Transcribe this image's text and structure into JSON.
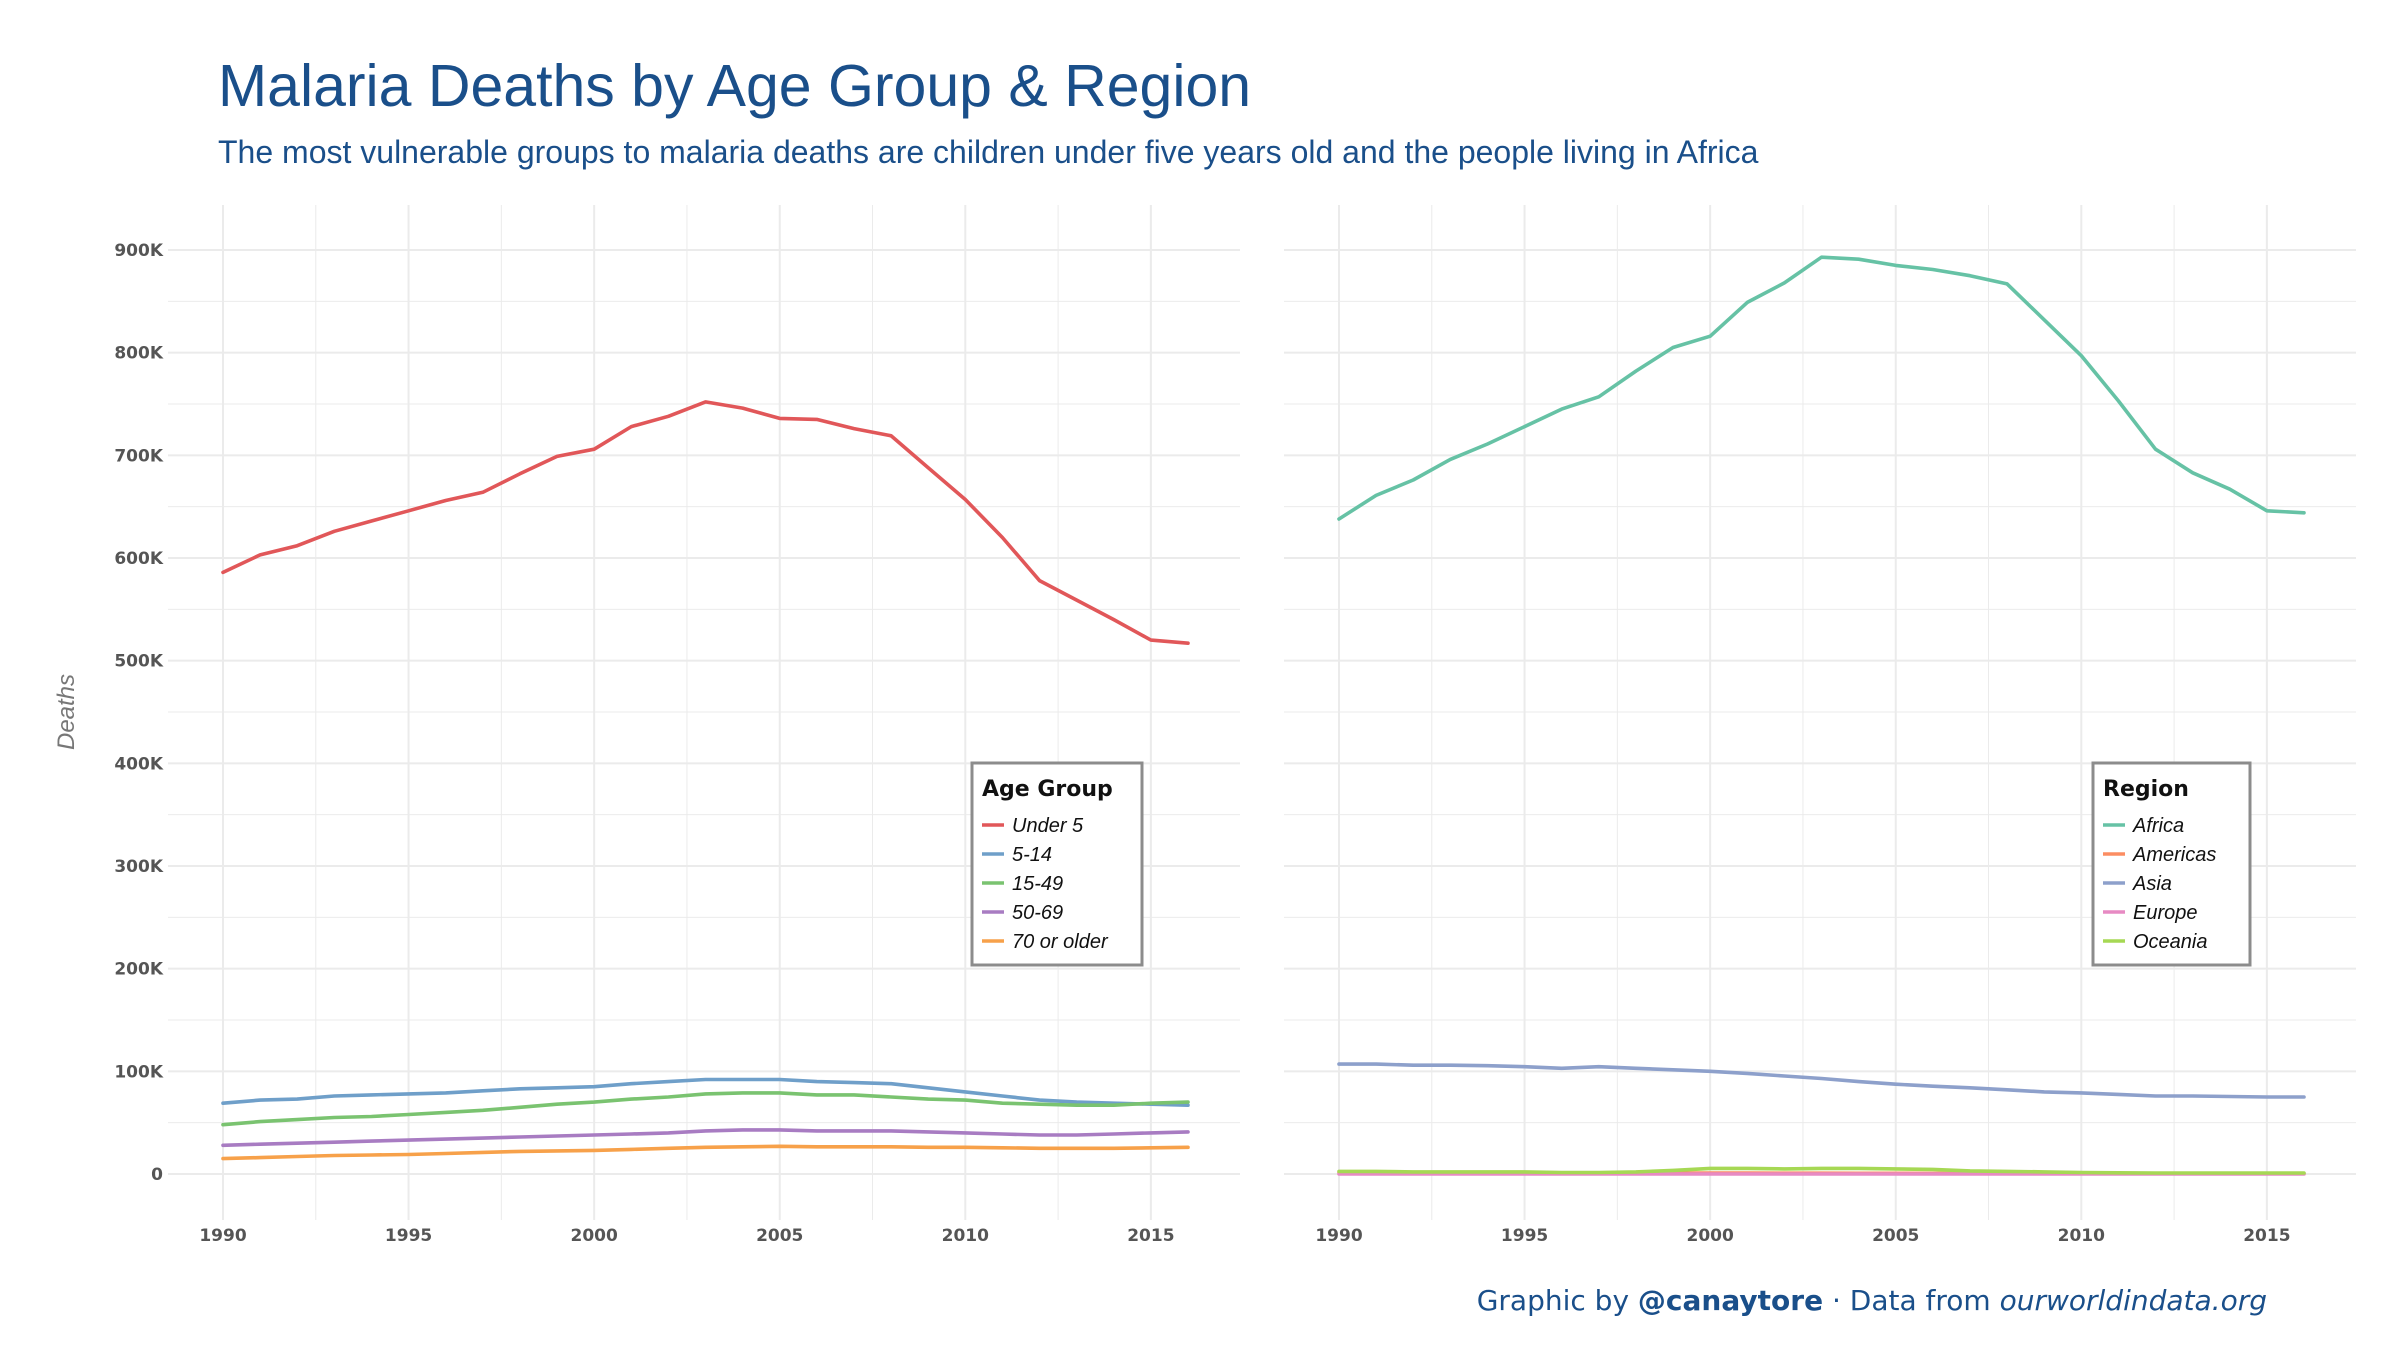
{
  "header": {
    "title": "Malaria Deaths by Age Group & Region",
    "subtitle": "The most vulnerable groups to malaria deaths are children under five years old and the people living in Africa"
  },
  "caption": {
    "prefix": "Graphic by ",
    "handle": "@canaytore",
    "middle": " · Data from ",
    "source": "ourworldindata.org"
  },
  "colors": {
    "title": "#1a4f8a",
    "grid": "#ebebeb"
  },
  "chart_data": [
    {
      "type": "line",
      "ylabel": "Deaths",
      "xlabel": "",
      "xlim": [
        1990,
        2016
      ],
      "ylim": [
        0,
        900000
      ],
      "x_ticks": [
        1990,
        1995,
        2000,
        2005,
        2010,
        2015
      ],
      "y_ticks": [
        0,
        100000,
        200000,
        300000,
        400000,
        500000,
        600000,
        700000,
        800000,
        900000
      ],
      "y_tick_labels": [
        "0",
        "100K",
        "200K",
        "300K",
        "400K",
        "500K",
        "600K",
        "700K",
        "800K",
        "900K"
      ],
      "grid": true,
      "legend": {
        "title": "Age Group",
        "position": "bottom-right"
      },
      "x": [
        1990,
        1991,
        1992,
        1993,
        1994,
        1995,
        1996,
        1997,
        1998,
        1999,
        2000,
        2001,
        2002,
        2003,
        2004,
        2005,
        2006,
        2007,
        2008,
        2009,
        2010,
        2011,
        2012,
        2013,
        2014,
        2015,
        2016
      ],
      "series": [
        {
          "name": "Under 5",
          "color": "#e15759",
          "values": [
            586000,
            603000,
            612000,
            626000,
            636000,
            646000,
            656000,
            664000,
            682000,
            699000,
            706000,
            728000,
            738000,
            752000,
            746000,
            736000,
            735000,
            726000,
            719000,
            688000,
            657000,
            620000,
            578000,
            559000,
            540000,
            520000,
            517000
          ]
        },
        {
          "name": "5-14",
          "color": "#6f9fc9",
          "values": [
            69000,
            72000,
            73000,
            76000,
            77000,
            78000,
            79000,
            81000,
            83000,
            84000,
            85000,
            88000,
            90000,
            92000,
            92000,
            92000,
            90000,
            89000,
            88000,
            84000,
            80000,
            76000,
            72000,
            70000,
            69000,
            68000,
            67000
          ]
        },
        {
          "name": "15-49",
          "color": "#7ac370",
          "values": [
            48000,
            51000,
            53000,
            55000,
            56000,
            58000,
            60000,
            62000,
            65000,
            68000,
            70000,
            73000,
            75000,
            78000,
            79000,
            79000,
            77000,
            77000,
            75000,
            73000,
            72000,
            69000,
            68000,
            67000,
            67000,
            69000,
            70000
          ]
        },
        {
          "name": "50-69",
          "color": "#a87cc2",
          "values": [
            28000,
            29000,
            30000,
            31000,
            32000,
            33000,
            34000,
            35000,
            36000,
            37000,
            38000,
            39000,
            40000,
            42000,
            43000,
            43000,
            42000,
            42000,
            42000,
            41000,
            40000,
            39000,
            38000,
            38000,
            39000,
            40000,
            41000
          ]
        },
        {
          "name": "70 or older",
          "color": "#f7a14a",
          "values": [
            15000,
            16000,
            17000,
            18000,
            18500,
            19000,
            20000,
            21000,
            22000,
            22500,
            23000,
            24000,
            25000,
            26000,
            26500,
            27000,
            26500,
            26500,
            26500,
            26000,
            26000,
            25500,
            25000,
            25000,
            25000,
            25500,
            26000
          ]
        }
      ]
    },
    {
      "type": "line",
      "ylabel": "",
      "xlabel": "",
      "xlim": [
        1990,
        2016
      ],
      "ylim": [
        0,
        900000
      ],
      "x_ticks": [
        1990,
        1995,
        2000,
        2005,
        2010,
        2015
      ],
      "grid": true,
      "legend": {
        "title": "Region",
        "position": "bottom-right"
      },
      "x": [
        1990,
        1991,
        1992,
        1993,
        1994,
        1995,
        1996,
        1997,
        1998,
        1999,
        2000,
        2001,
        2002,
        2003,
        2004,
        2005,
        2006,
        2007,
        2008,
        2009,
        2010,
        2011,
        2012,
        2013,
        2014,
        2015,
        2016
      ],
      "series": [
        {
          "name": "Africa",
          "color": "#66c2a5",
          "values": [
            638000,
            661000,
            676000,
            696000,
            711000,
            728000,
            745000,
            757000,
            782000,
            805000,
            816000,
            849000,
            868000,
            893000,
            891000,
            885000,
            881000,
            875000,
            867000,
            832000,
            797000,
            753000,
            706000,
            683000,
            667000,
            646000,
            644000
          ]
        },
        {
          "name": "Americas",
          "color": "#fc8d62",
          "values": [
            1500,
            1500,
            1500,
            1400,
            1400,
            1300,
            1200,
            1100,
            1000,
            1000,
            900,
            900,
            800,
            800,
            700,
            700,
            600,
            600,
            500,
            500,
            500,
            400,
            400,
            400,
            300,
            300,
            300
          ]
        },
        {
          "name": "Asia",
          "color": "#8da0cb",
          "values": [
            107000,
            107000,
            106000,
            106000,
            105500,
            104500,
            103000,
            104500,
            103000,
            101500,
            100000,
            98000,
            95500,
            93000,
            90000,
            87500,
            85500,
            84000,
            82000,
            80000,
            79000,
            77500,
            76000,
            76000,
            75500,
            75000,
            75000
          ]
        },
        {
          "name": "Europe",
          "color": "#e78ac3",
          "values": [
            0,
            0,
            0,
            0,
            0,
            0,
            0,
            0,
            0,
            0,
            0,
            0,
            0,
            0,
            0,
            0,
            0,
            0,
            0,
            0,
            0,
            0,
            0,
            0,
            0,
            0,
            0
          ]
        },
        {
          "name": "Oceania",
          "color": "#a6d854",
          "values": [
            2500,
            2500,
            2000,
            2000,
            2000,
            2000,
            1500,
            1500,
            2000,
            3500,
            5500,
            5500,
            5000,
            5500,
            5500,
            5000,
            4500,
            3000,
            2500,
            2000,
            1500,
            1200,
            1000,
            1000,
            1000,
            1000,
            1000
          ]
        }
      ]
    }
  ]
}
